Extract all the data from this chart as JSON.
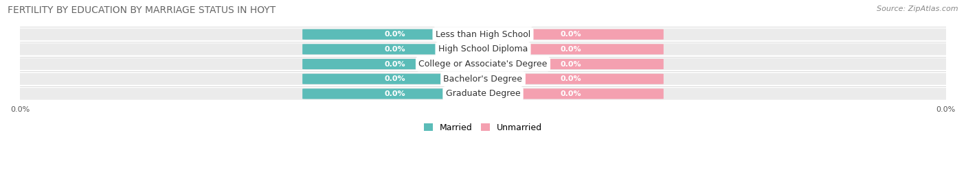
{
  "title": "FERTILITY BY EDUCATION BY MARRIAGE STATUS IN HOYT",
  "source": "Source: ZipAtlas.com",
  "categories": [
    "Less than High School",
    "High School Diploma",
    "College or Associate's Degree",
    "Bachelor's Degree",
    "Graduate Degree"
  ],
  "married_values": [
    0.0,
    0.0,
    0.0,
    0.0,
    0.0
  ],
  "unmarried_values": [
    0.0,
    0.0,
    0.0,
    0.0,
    0.0
  ],
  "married_color": "#5bbcb8",
  "unmarried_color": "#f4a0b0",
  "row_bg_color": "#ebebeb",
  "value_label_married": "0.0%",
  "value_label_unmarried": "0.0%",
  "x_tick_label_left": "0.0%",
  "x_tick_label_right": "0.0%",
  "figsize": [
    14.06,
    2.7
  ],
  "dpi": 100,
  "title_fontsize": 10,
  "source_fontsize": 8,
  "category_fontsize": 9,
  "value_fontsize": 8,
  "legend_fontsize": 9
}
